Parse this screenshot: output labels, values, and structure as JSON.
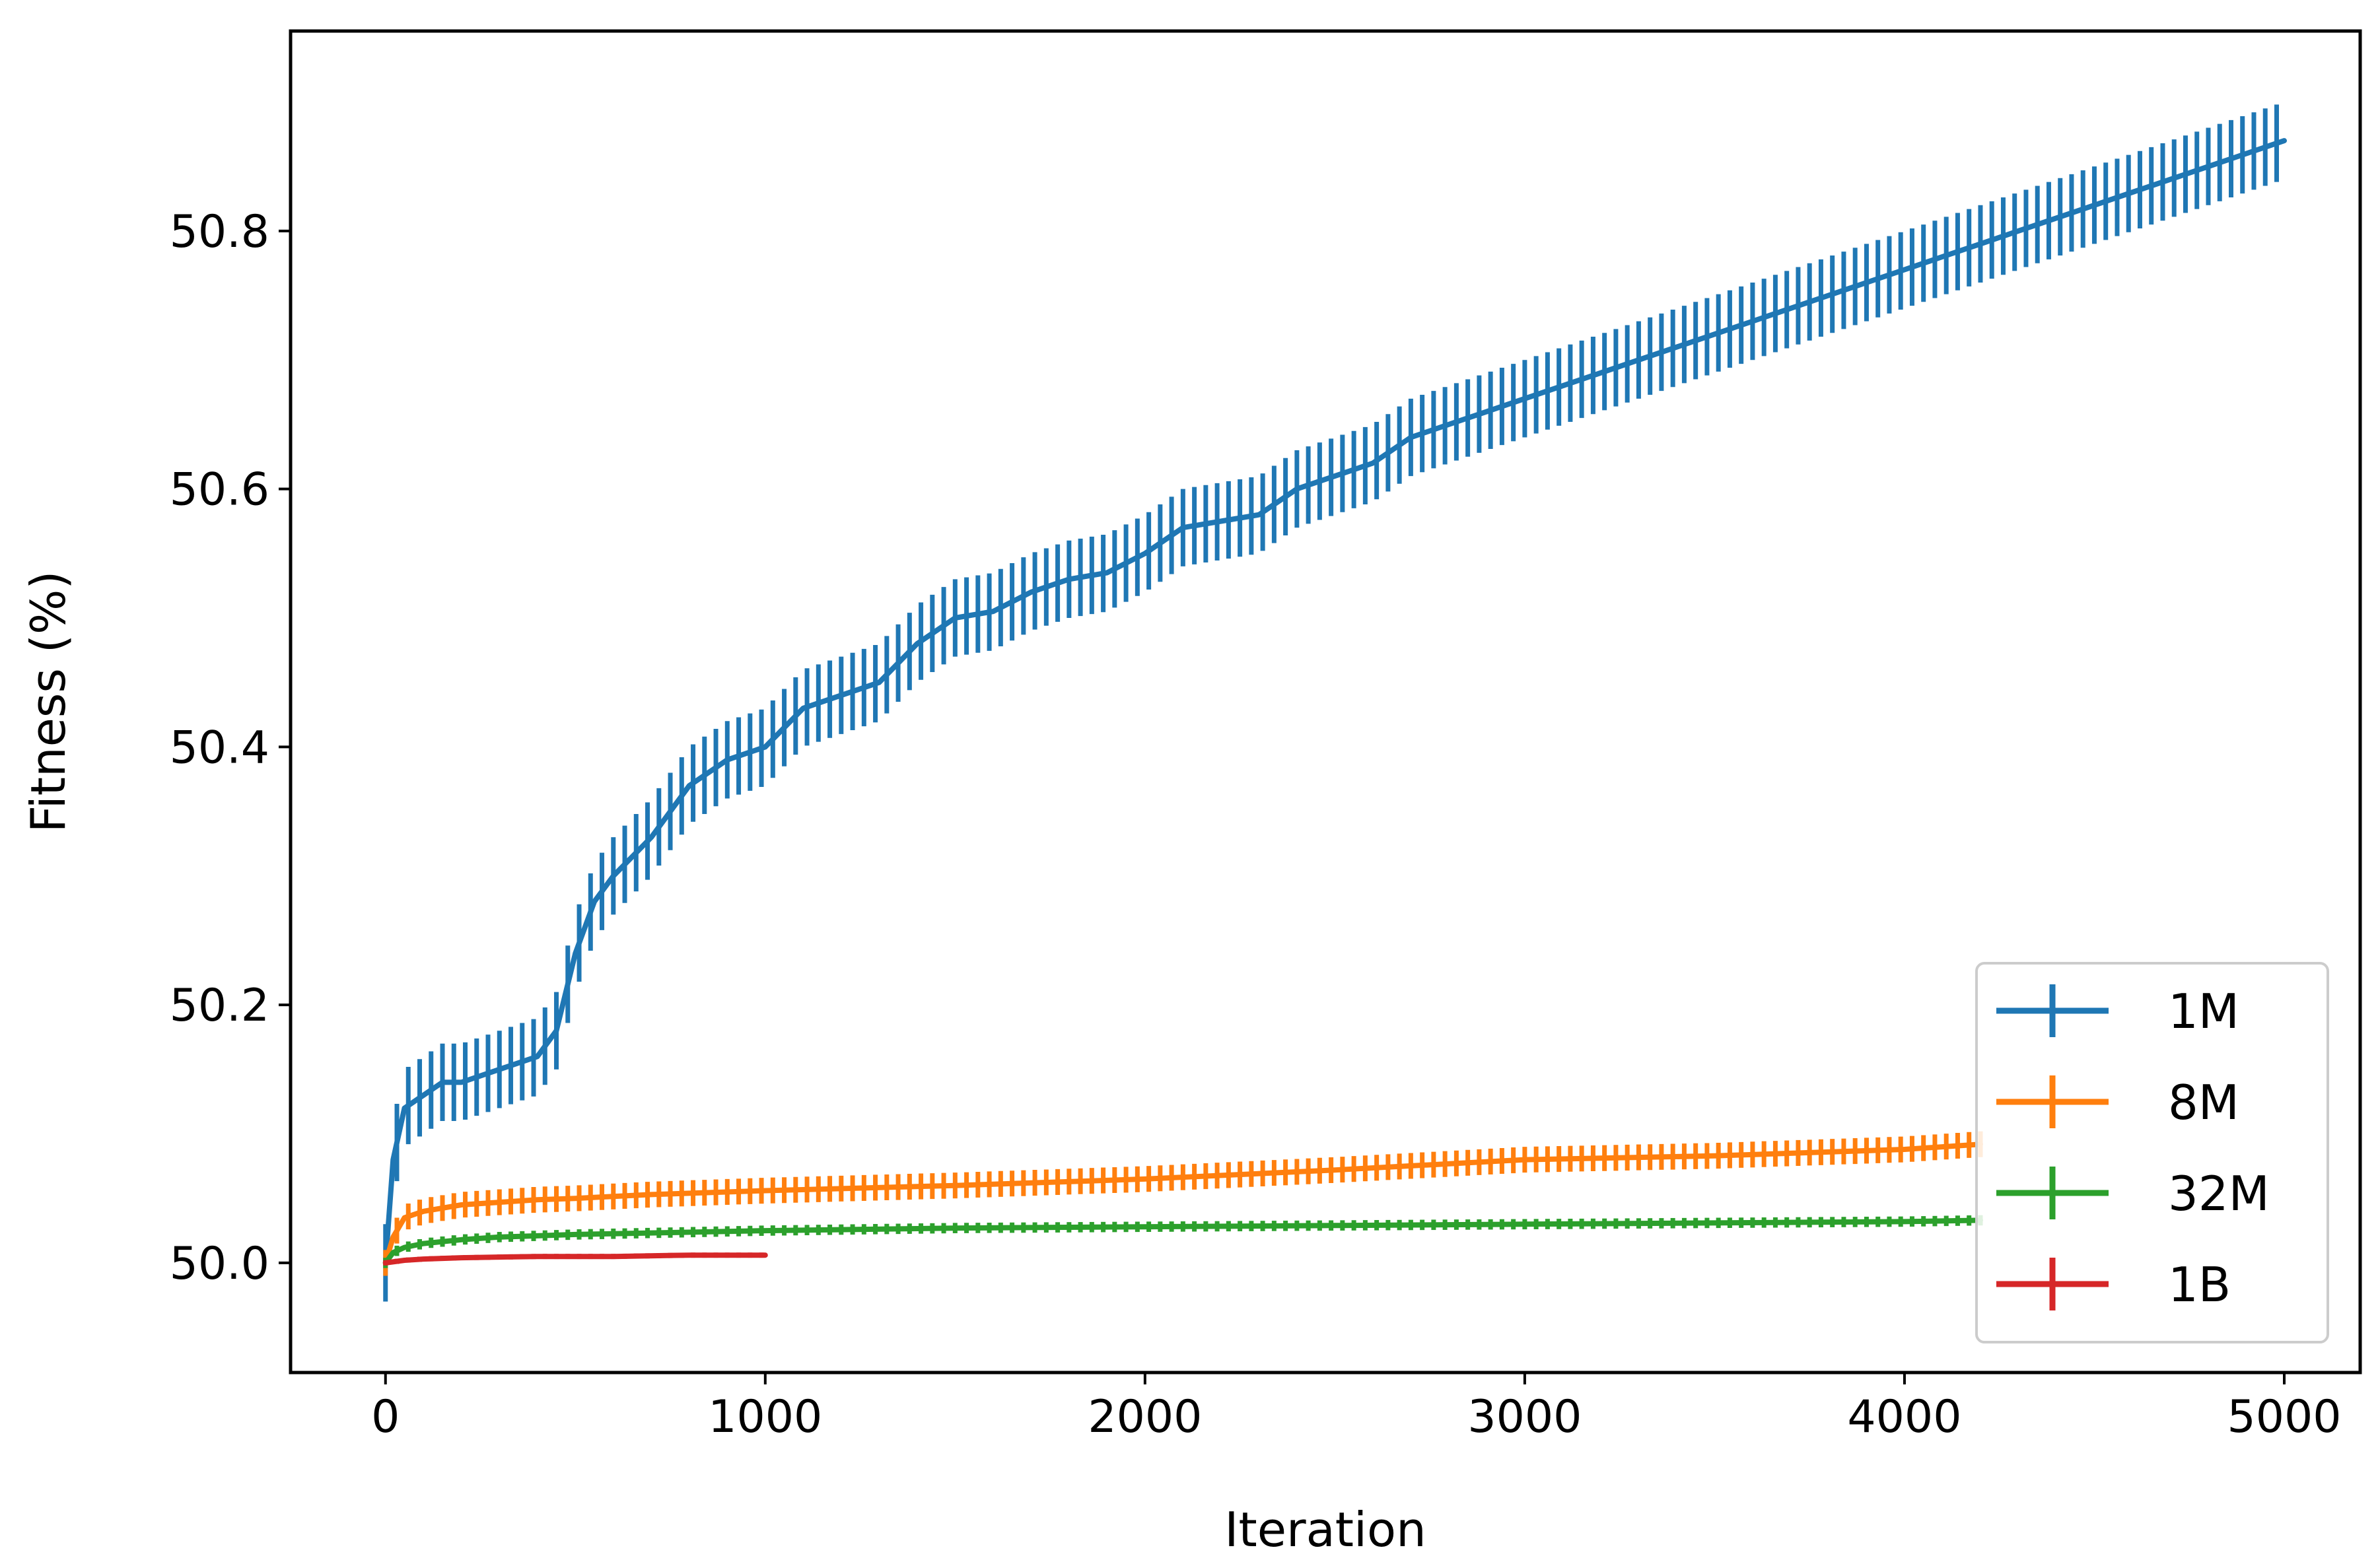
{
  "chart_data": {
    "type": "line",
    "title": "",
    "xlabel": "Iteration",
    "ylabel": "Fitness (%)",
    "xlim": [
      -250,
      5200
    ],
    "ylim": [
      49.915,
      50.955
    ],
    "xticks": [
      0,
      1000,
      2000,
      3000,
      4000,
      5000
    ],
    "xtick_labels": [
      "0",
      "1000",
      "2000",
      "3000",
      "4000",
      "5000"
    ],
    "yticks": [
      50.0,
      50.2,
      50.4,
      50.6,
      50.8
    ],
    "ytick_labels": [
      "50.0",
      "50.2",
      "50.4",
      "50.6",
      "50.8"
    ],
    "grid": false,
    "legend_position": "lower-right",
    "error_bars": true,
    "series": [
      {
        "name": "1M",
        "color": "#1f77b4",
        "x": [
          0,
          20,
          50,
          100,
          150,
          200,
          300,
          400,
          450,
          500,
          550,
          600,
          700,
          800,
          900,
          1000,
          1100,
          1200,
          1300,
          1400,
          1500,
          1600,
          1700,
          1800,
          1900,
          2000,
          2100,
          2200,
          2300,
          2400,
          2500,
          2600,
          2700,
          2800,
          2900,
          3000,
          3100,
          3200,
          3300,
          3400,
          3500,
          3600,
          3700,
          3800,
          3900,
          4000,
          4100,
          4200,
          4300,
          4400,
          4500,
          4600,
          4700,
          4800,
          4900,
          5000
        ],
        "y": [
          50.0,
          50.08,
          50.12,
          50.13,
          50.14,
          50.14,
          50.15,
          50.16,
          50.18,
          50.24,
          50.28,
          50.3,
          50.33,
          50.37,
          50.39,
          50.4,
          50.43,
          50.44,
          50.45,
          50.48,
          50.5,
          50.505,
          50.52,
          50.53,
          50.535,
          50.55,
          50.57,
          50.575,
          50.58,
          50.6,
          50.61,
          50.62,
          50.64,
          50.65,
          50.66,
          50.67,
          50.68,
          50.69,
          50.7,
          50.71,
          50.72,
          50.73,
          50.74,
          50.75,
          50.76,
          50.77,
          50.78,
          50.79,
          50.8,
          50.81,
          50.82,
          50.83,
          50.84,
          50.85,
          50.86,
          50.87
        ],
        "error": 0.03
      },
      {
        "name": "8M",
        "color": "#ff7f0e",
        "x": [
          0,
          20,
          50,
          100,
          200,
          300,
          400,
          500,
          700,
          1000,
          1500,
          2000,
          2500,
          3000,
          3500,
          4000,
          4200
        ],
        "y": [
          50.0,
          50.02,
          50.035,
          50.04,
          50.045,
          50.047,
          50.049,
          50.05,
          50.053,
          50.056,
          50.06,
          50.065,
          50.072,
          50.08,
          50.083,
          50.088,
          50.092
        ],
        "error": 0.01
      },
      {
        "name": "32M",
        "color": "#2ca02c",
        "x": [
          0,
          20,
          50,
          100,
          200,
          300,
          400,
          500,
          1000,
          1500,
          2000,
          2500,
          3000,
          3500,
          4000,
          4200
        ],
        "y": [
          50.0,
          50.008,
          50.012,
          50.015,
          50.018,
          50.02,
          50.021,
          50.022,
          50.025,
          50.027,
          50.028,
          50.029,
          50.03,
          50.031,
          50.032,
          50.033
        ],
        "error": 0.004
      },
      {
        "name": "1B",
        "color": "#d62728",
        "x": [
          0,
          50,
          100,
          200,
          400,
          600,
          800,
          1000
        ],
        "y": [
          50.0,
          50.002,
          50.003,
          50.004,
          50.005,
          50.005,
          50.006,
          50.006
        ],
        "error": 0.002
      }
    ]
  }
}
